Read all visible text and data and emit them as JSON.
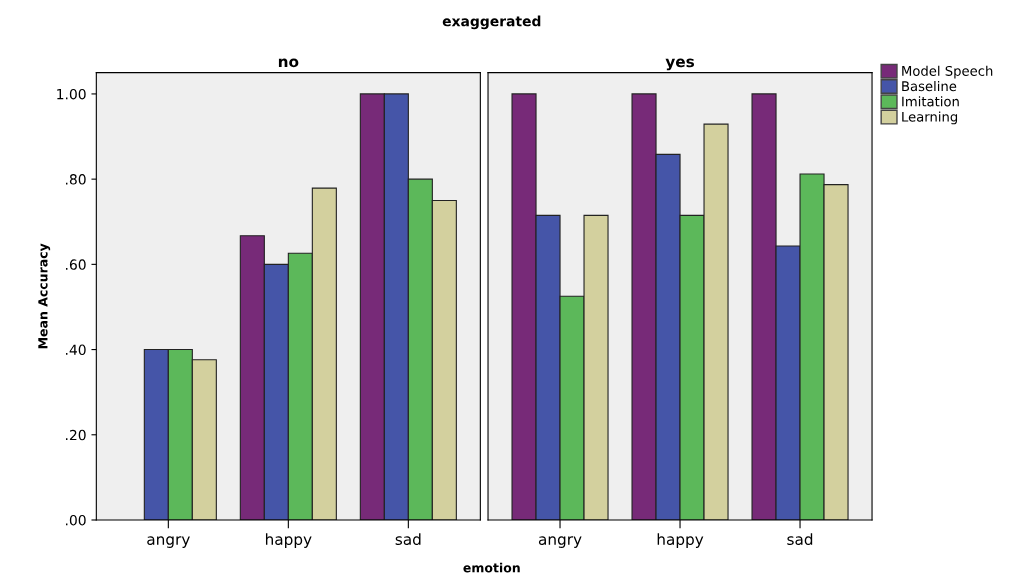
{
  "chart_data": [
    {
      "type": "bar",
      "title": "no",
      "ylabel": "Mean Accuracy",
      "xlabel": "emotion",
      "annotations": [
        "exaggerated"
      ],
      "categories": [
        "angry",
        "happy",
        "sad"
      ],
      "ylim": [
        0,
        1.05
      ],
      "yticks": [
        {
          "value": 0,
          "label": ".00"
        },
        {
          "value": 0.2,
          "label": ".20"
        },
        {
          "value": 0.4,
          "label": ".40"
        },
        {
          "value": 0.6,
          "label": ".60"
        },
        {
          "value": 0.8,
          "label": ".80"
        },
        {
          "value": 1,
          "label": "1.00"
        }
      ],
      "grid": false,
      "series": [
        {
          "color": "#772a78",
          "values": [
            0,
            0.667,
            1.0
          ]
        },
        {
          "color": "#4555a8",
          "values": [
            0.4,
            0.6,
            1.0
          ]
        },
        {
          "color": "#5cb85a",
          "values": [
            0.4,
            0.626,
            0.8
          ]
        },
        {
          "color": "#d3d09e",
          "values": [
            0.376,
            0.779,
            0.75
          ]
        }
      ]
    },
    {
      "type": "bar",
      "title": "yes",
      "categories": [
        "angry",
        "happy",
        "sad"
      ],
      "ylim": [
        0,
        1.05
      ],
      "tick_labels": "x",
      "grid": false,
      "legend": "right",
      "series": [
        {
          "name": "Model Speech",
          "color": "#772a78",
          "values": [
            1.0,
            1.0,
            1.0
          ]
        },
        {
          "name": "Baseline",
          "color": "#4555a8",
          "values": [
            0.715,
            0.858,
            0.643
          ]
        },
        {
          "name": "Imitation",
          "color": "#5cb85a",
          "values": [
            0.525,
            0.715,
            0.812
          ]
        },
        {
          "name": "Learning",
          "color": "#d3d09e",
          "values": [
            0.715,
            0.929,
            0.787
          ]
        }
      ]
    }
  ]
}
